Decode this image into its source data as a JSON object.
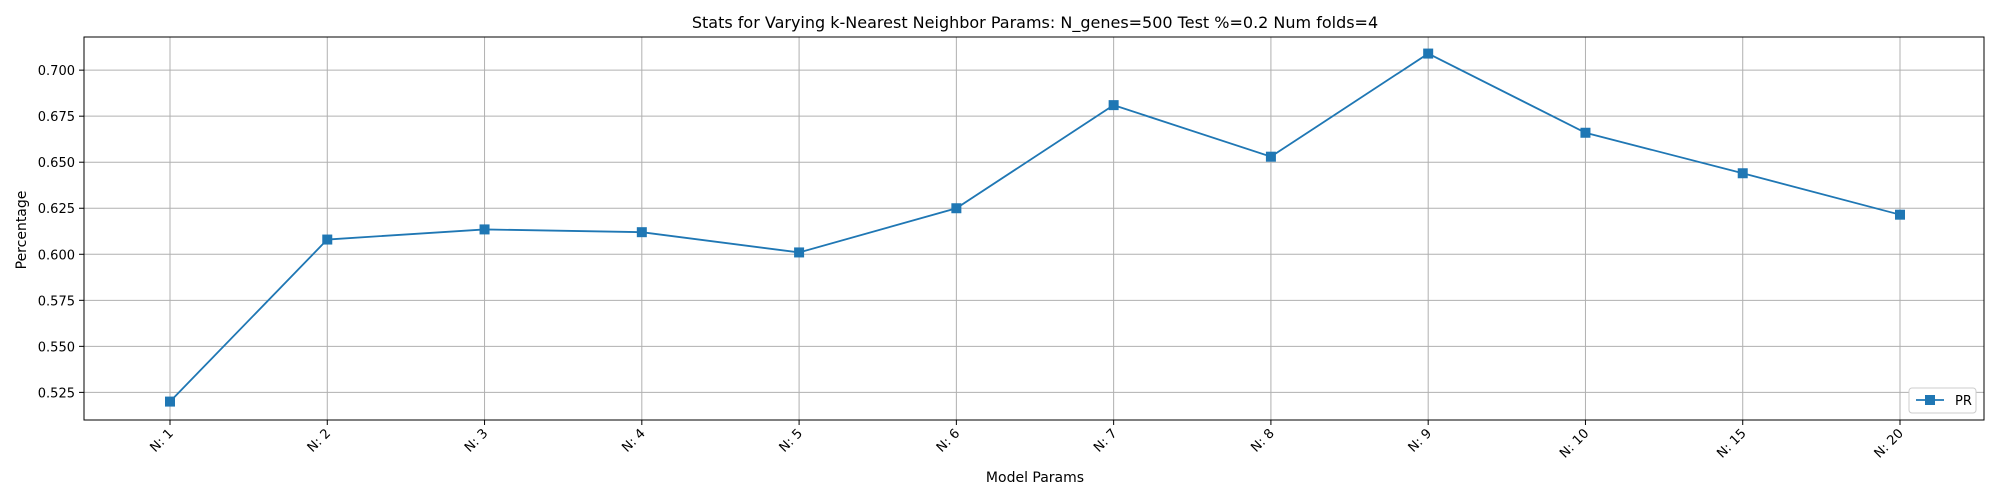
{
  "chart_data": {
    "type": "line",
    "title": "Stats for Varying k-Nearest Neighbor Params: N_genes=500 Test %=0.2 Num folds=4",
    "xlabel": "Model Params",
    "ylabel": "Percentage",
    "categories": [
      "N: 1",
      "N: 2",
      "N: 3",
      "N: 4",
      "N: 5",
      "N: 6",
      "N: 7",
      "N: 8",
      "N: 9",
      "N: 10",
      "N: 15",
      "N: 20"
    ],
    "series": [
      {
        "name": "PR",
        "color": "#1f77b4",
        "marker": "square",
        "values": [
          0.52,
          0.608,
          0.6135,
          0.612,
          0.601,
          0.625,
          0.681,
          0.653,
          0.709,
          0.666,
          0.644,
          0.6215
        ]
      }
    ],
    "ylim": [
      0.51,
      0.718
    ],
    "yticks": [
      "0.525",
      "0.550",
      "0.575",
      "0.600",
      "0.625",
      "0.650",
      "0.675",
      "0.700"
    ],
    "grid": true,
    "legend_position": "bottom-right",
    "xtick_rotation": "45"
  }
}
